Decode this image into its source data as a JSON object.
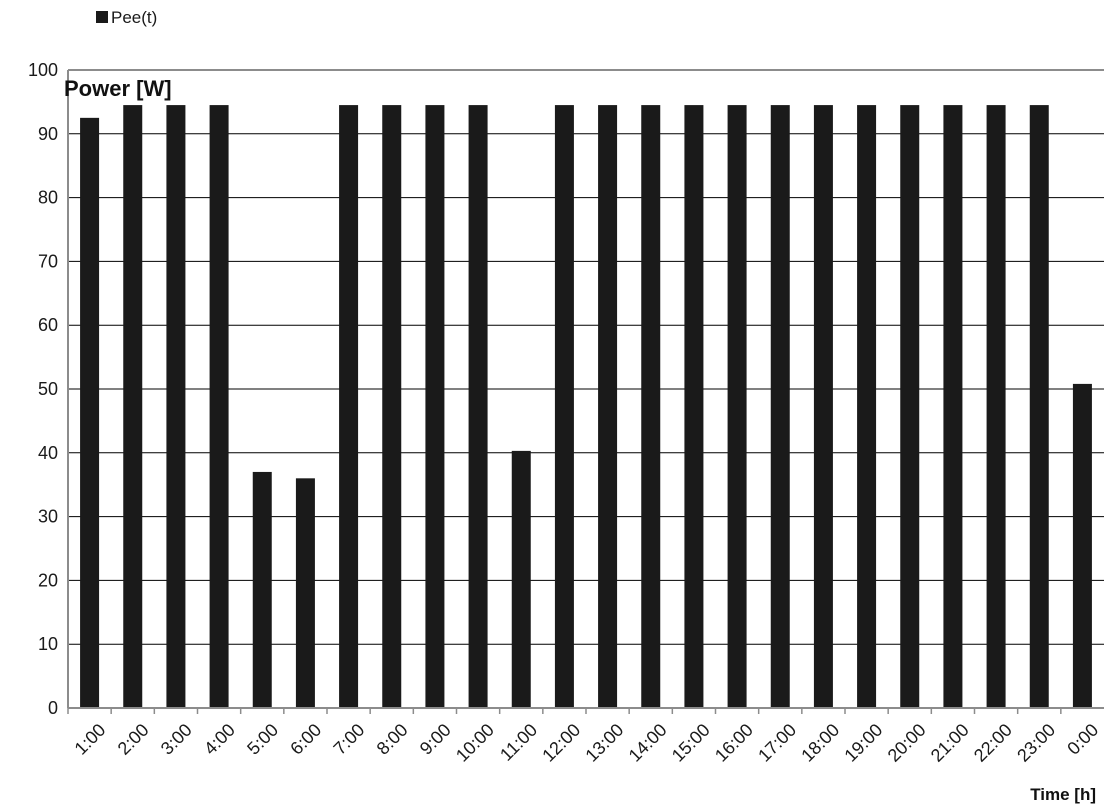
{
  "chart_data": {
    "type": "bar",
    "categories": [
      "1:00",
      "2:00",
      "3:00",
      "4:00",
      "5:00",
      "6:00",
      "7:00",
      "8:00",
      "9:00",
      "10:00",
      "11:00",
      "12:00",
      "13:00",
      "14:00",
      "15:00",
      "16:00",
      "17:00",
      "18:00",
      "19:00",
      "20:00",
      "21:00",
      "22:00",
      "23:00",
      "0:00"
    ],
    "series": [
      {
        "name": "Pee(t)",
        "values": [
          92.5,
          94.5,
          94.5,
          94.5,
          37,
          36,
          94.5,
          94.5,
          94.5,
          94.5,
          40.3,
          94.5,
          94.5,
          94.5,
          94.5,
          94.5,
          94.5,
          94.5,
          94.5,
          94.5,
          94.5,
          94.5,
          94.5,
          50.8
        ]
      }
    ],
    "title": "",
    "ylabel": "Power [W]",
    "xlabel": "Time [h]",
    "ylim": [
      0,
      100
    ],
    "yticks": [
      0,
      10,
      20,
      30,
      40,
      50,
      60,
      70,
      80,
      90,
      100
    ],
    "grid": true,
    "legend_position": "top-left",
    "bar_color": "#1a1a1a",
    "grid_color": "#000000",
    "axis_color": "#8c8c8c"
  }
}
